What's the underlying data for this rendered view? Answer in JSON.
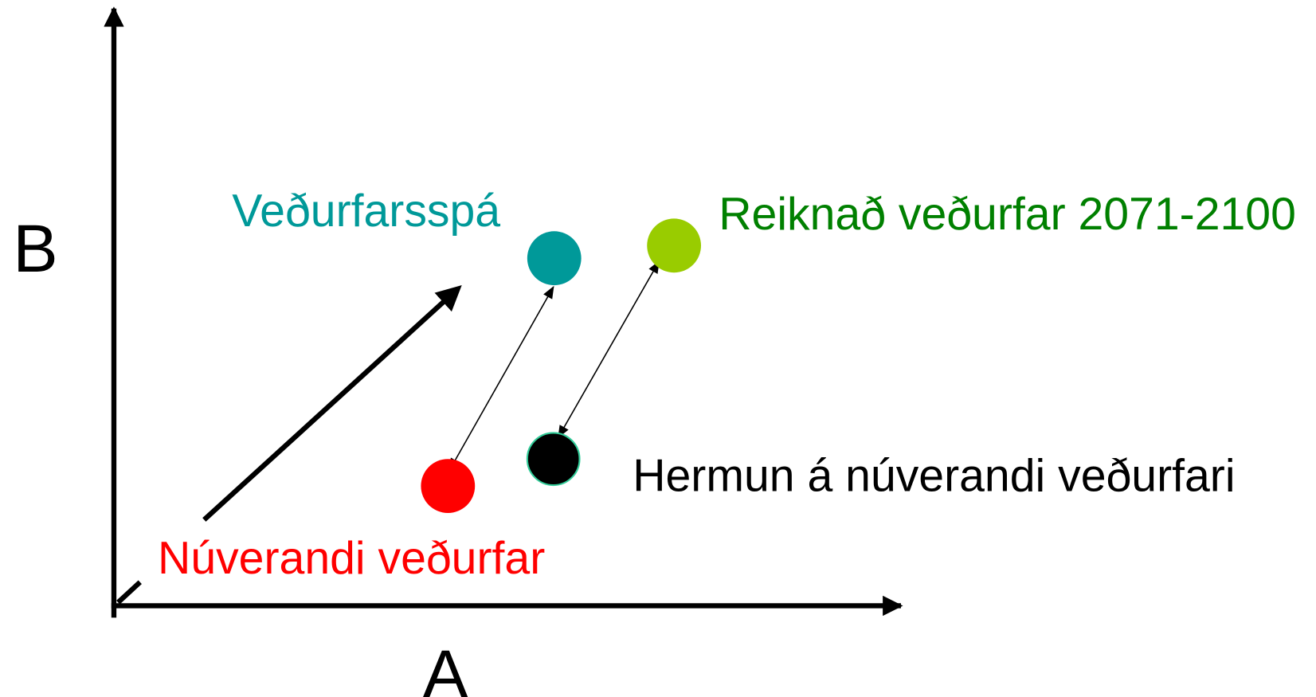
{
  "axes": {
    "x_label": "A",
    "y_label": "B"
  },
  "labels": {
    "forecast": "Veðurfarsspá",
    "computed": "Reiknað veðurfar 2071-2100",
    "simulation": "Hermun á núverandi veðurfari",
    "current": "Núverandi veðurfar"
  }
}
